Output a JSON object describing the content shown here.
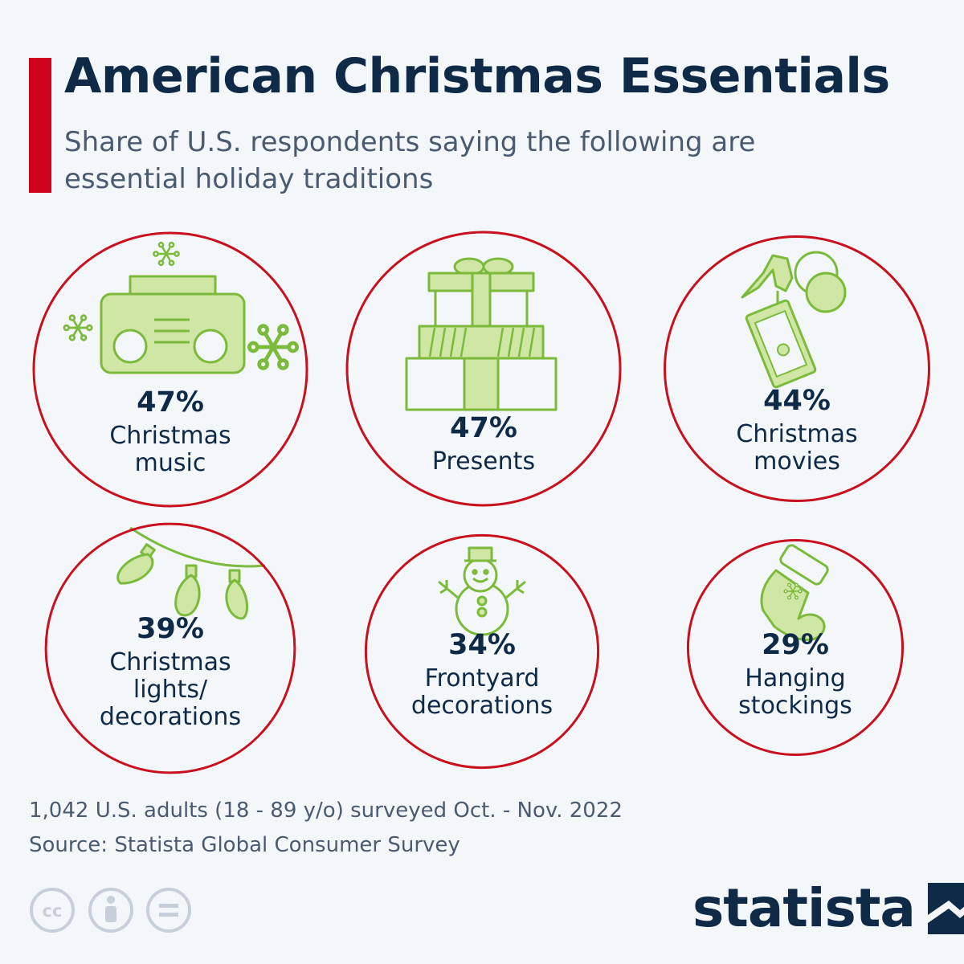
{
  "header": {
    "title": "American Christmas Essentials",
    "subtitle": "Share of U.S. respondents saying the following are essential holiday traditions"
  },
  "chart_data": {
    "type": "bubble",
    "title": "American Christmas Essentials",
    "subtitle": "Share of U.S. respondents saying the following are essential holiday traditions",
    "unit": "%",
    "items": [
      {
        "label": [
          "Christmas",
          "music"
        ],
        "value": 47,
        "value_label": "47%",
        "icon": "radio-icon"
      },
      {
        "label": [
          "Presents"
        ],
        "value": 47,
        "value_label": "47%",
        "icon": "presents-icon"
      },
      {
        "label": [
          "Christmas",
          "movies"
        ],
        "value": 44,
        "value_label": "44%",
        "icon": "movie-ticket-icon"
      },
      {
        "label": [
          "Christmas",
          "lights/",
          "decorations"
        ],
        "value": 39,
        "value_label": "39%",
        "icon": "lights-icon"
      },
      {
        "label": [
          "Frontyard",
          "decorations"
        ],
        "value": 34,
        "value_label": "34%",
        "icon": "snowman-icon"
      },
      {
        "label": [
          "Hanging",
          "stockings"
        ],
        "value": 29,
        "value_label": "29%",
        "icon": "stocking-icon"
      }
    ]
  },
  "footer": {
    "survey_note": "1,042 U.S. adults (18 - 89 y/o) surveyed Oct. - Nov. 2022",
    "source": "Source: Statista Global Consumer Survey",
    "license_icons": [
      "cc-icon",
      "attribution-icon",
      "no-derivatives-icon"
    ],
    "logo_text": "statista"
  },
  "colors": {
    "accent": "#d0021b",
    "circle_stroke": "#c8101e",
    "icon_fill": "#cfe6a4",
    "icon_stroke": "#7cba3c",
    "text_dark": "#0f2a47",
    "text_muted": "#4a5b70",
    "background": "#f4f7fa"
  }
}
